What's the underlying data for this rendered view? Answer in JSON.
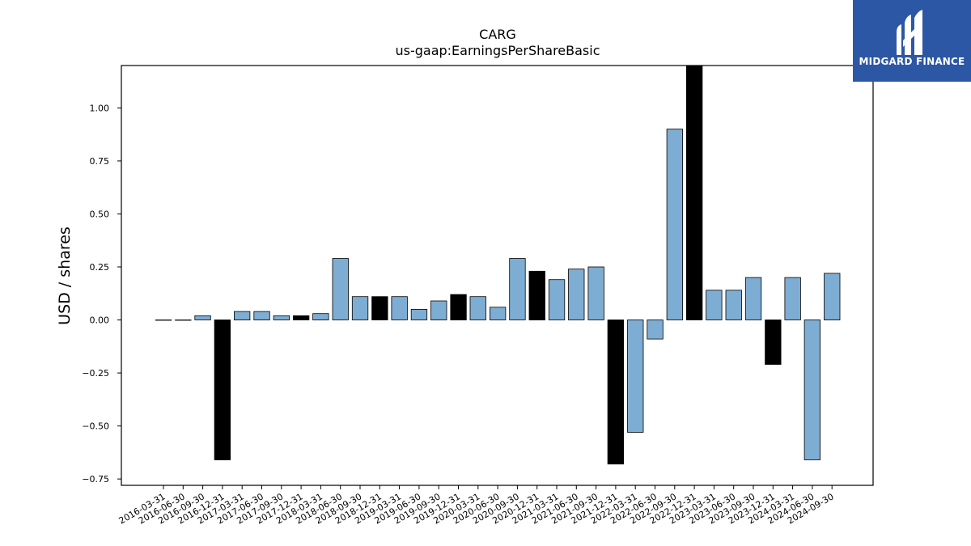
{
  "brand": {
    "name": "MIDGARD FINANCE",
    "icon": "midgard-logo-icon",
    "color": "#2c57a4"
  },
  "chart_data": {
    "type": "bar",
    "title": "CARG",
    "subtitle": "us-gaap:EarningsPerShareBasic",
    "xlabel": "",
    "ylabel": "USD / shares",
    "ylim": [
      -0.78,
      1.2
    ],
    "yticks": [
      -0.75,
      -0.5,
      -0.25,
      0.0,
      0.25,
      0.5,
      0.75,
      1.0
    ],
    "ytick_labels": [
      "−0.75",
      "−0.50",
      "−0.25",
      "0.00",
      "0.25",
      "0.50",
      "0.75",
      "1.00"
    ],
    "grid": false,
    "colors": {
      "quarterly": "#7eadd3",
      "annual": "#000000",
      "edge": "#000000"
    },
    "categories": [
      "2016-03-31",
      "2016-06-30",
      "2016-09-30",
      "2016-12-31",
      "2017-03-31",
      "2017-06-30",
      "2017-09-30",
      "2017-12-31",
      "2018-03-31",
      "2018-06-30",
      "2018-09-30",
      "2018-12-31",
      "2019-03-31",
      "2019-06-30",
      "2019-09-30",
      "2019-12-31",
      "2020-03-31",
      "2020-06-30",
      "2020-09-30",
      "2020-12-31",
      "2021-03-31",
      "2021-06-30",
      "2021-09-30",
      "2021-12-31",
      "2022-03-31",
      "2022-06-30",
      "2022-09-30",
      "2022-12-31",
      "2023-03-31",
      "2023-06-30",
      "2023-09-30",
      "2023-12-31",
      "2024-03-31",
      "2024-06-30",
      "2024-09-30"
    ],
    "values": [
      0.0,
      0.0,
      0.02,
      -0.66,
      0.04,
      0.04,
      0.02,
      0.02,
      0.03,
      0.29,
      0.11,
      0.11,
      0.11,
      0.05,
      0.09,
      0.12,
      0.11,
      0.06,
      0.29,
      0.23,
      0.19,
      0.24,
      0.25,
      -0.68,
      -0.53,
      -0.09,
      0.9,
      1.23,
      0.14,
      0.14,
      0.2,
      -0.21,
      0.2,
      -0.66,
      0.22
    ],
    "bar_kind": [
      "q",
      "q",
      "q",
      "a",
      "q",
      "q",
      "q",
      "a",
      "q",
      "q",
      "q",
      "a",
      "q",
      "q",
      "q",
      "a",
      "q",
      "q",
      "q",
      "a",
      "q",
      "q",
      "q",
      "a",
      "q",
      "q",
      "q",
      "a",
      "q",
      "q",
      "q",
      "a",
      "q",
      "q",
      "q"
    ]
  }
}
